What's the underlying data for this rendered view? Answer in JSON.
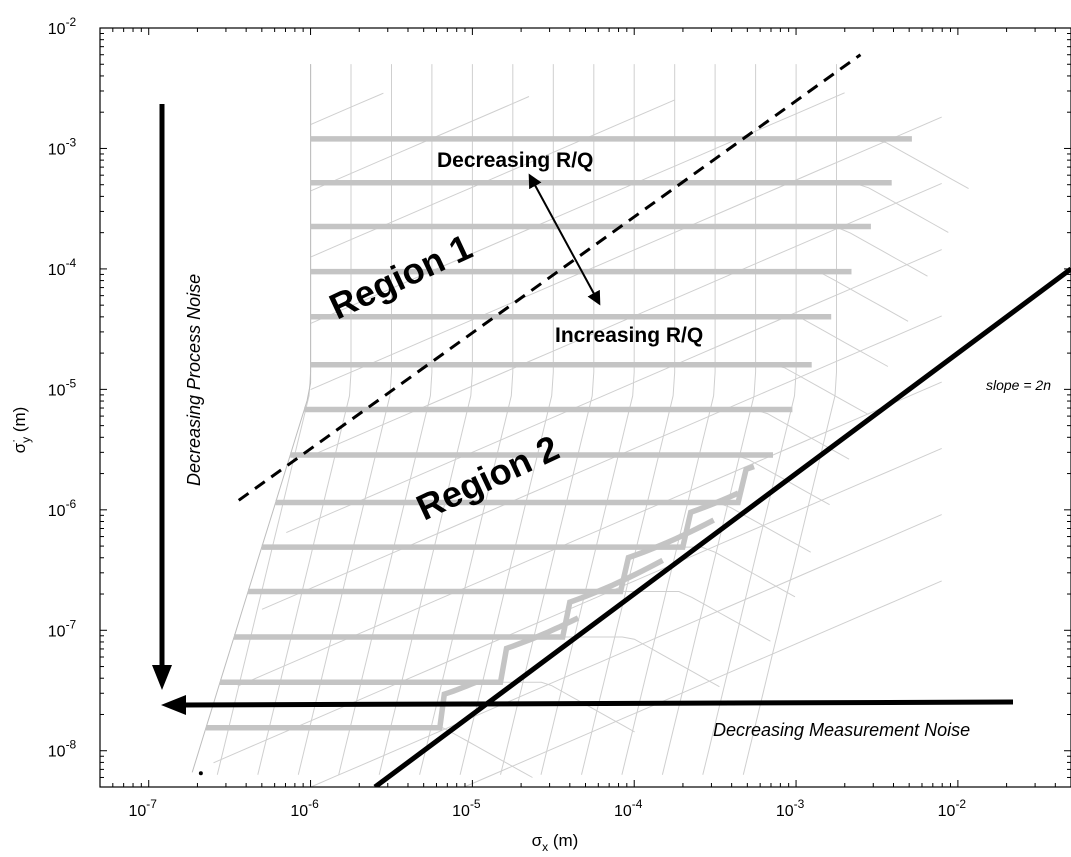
{
  "chart_data": {
    "type": "line",
    "x_scale": "log",
    "y_scale": "log",
    "xlim": [
      5e-08,
      0.05
    ],
    "ylim": [
      5e-09,
      0.01
    ],
    "grid": false,
    "xlabel": {
      "main": "σ",
      "sub": "x",
      "unit": " (m)"
    },
    "ylabel": {
      "main": "σ",
      "sub": "y",
      "sup": "·",
      "unit": " (m)"
    },
    "x_ticks": [
      {
        "value": 1e-07,
        "base": "10",
        "exp": "-7"
      },
      {
        "value": 1e-06,
        "base": "10",
        "exp": "-6"
      },
      {
        "value": 1e-05,
        "base": "10",
        "exp": "-5"
      },
      {
        "value": 0.0001,
        "base": "10",
        "exp": "-4"
      },
      {
        "value": 0.001,
        "base": "10",
        "exp": "-3"
      },
      {
        "value": 0.01,
        "base": "10",
        "exp": "-2"
      }
    ],
    "y_ticks": [
      {
        "value": 1e-08,
        "base": "10",
        "exp": "-8"
      },
      {
        "value": 1e-07,
        "base": "10",
        "exp": "-7"
      },
      {
        "value": 1e-06,
        "base": "10",
        "exp": "-6"
      },
      {
        "value": 1e-05,
        "base": "10",
        "exp": "-5"
      },
      {
        "value": 0.0001,
        "base": "10",
        "exp": "-4"
      },
      {
        "value": 0.001,
        "base": "10",
        "exp": "-3"
      },
      {
        "value": 0.01,
        "base": "10",
        "exp": "-2"
      }
    ],
    "bold_lines": [
      {
        "y": 0.0012,
        "x_end": 0.0052
      },
      {
        "y": 0.00052,
        "x_end": 0.0039
      },
      {
        "y": 0.000225,
        "x_end": 0.0029
      },
      {
        "y": 9.5e-05,
        "x_end": 0.0022
      },
      {
        "y": 4e-05,
        "x_end": 0.00165
      },
      {
        "y": 1.6e-05,
        "x_end": 0.00125
      },
      {
        "y": 6.8e-06,
        "x_end": 0.00095
      },
      {
        "y": 2.85e-06,
        "x_end": 0.00072
      },
      {
        "y": 1.15e-06,
        "x_end": 0.00055
      },
      {
        "y": 4.9e-07,
        "x_end": 0.00044
      },
      {
        "y": 2.1e-07,
        "x_end": 0.00031
      },
      {
        "y": 8.8e-08,
        "x_end": 0.00015
      },
      {
        "y": 3.7e-08,
        "x_end": 4.5e-05
      },
      {
        "y": 1.55e-08,
        "x_end": 1.05e-05
      }
    ],
    "slope_line": {
      "x": [
        2.5e-06,
        0.05
      ],
      "y": [
        5e-09,
        0.0001
      ]
    },
    "dashed_line": {
      "x": [
        3.6e-07,
        0.0025
      ],
      "y": [
        1.2e-06,
        0.006
      ]
    },
    "start_point": {
      "x": 2.1e-07,
      "y": 6.5e-09
    }
  },
  "labels": {
    "region1": "Region 1",
    "region2": "Region 2",
    "decreasing_rq": "Decreasing R/Q",
    "increasing_rq": "Increasing R/Q",
    "process_noise": "Decreasing Process Noise",
    "measurement_noise": "Decreasing Measurement Noise",
    "slope": "slope = 2n"
  }
}
